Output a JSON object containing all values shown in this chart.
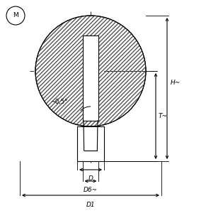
{
  "bg_color": "#ffffff",
  "line_color": "#000000",
  "fig_width": 2.91,
  "fig_height": 3.07,
  "dpi": 100,
  "label_M": "M",
  "label_H": "H~",
  "label_T": "T~",
  "label_D": "D",
  "label_D6": "D6~",
  "label_D1": "D1",
  "label_angle": "~0,5°",
  "font_size_labels": 6.5,
  "font_size_M": 6.5
}
